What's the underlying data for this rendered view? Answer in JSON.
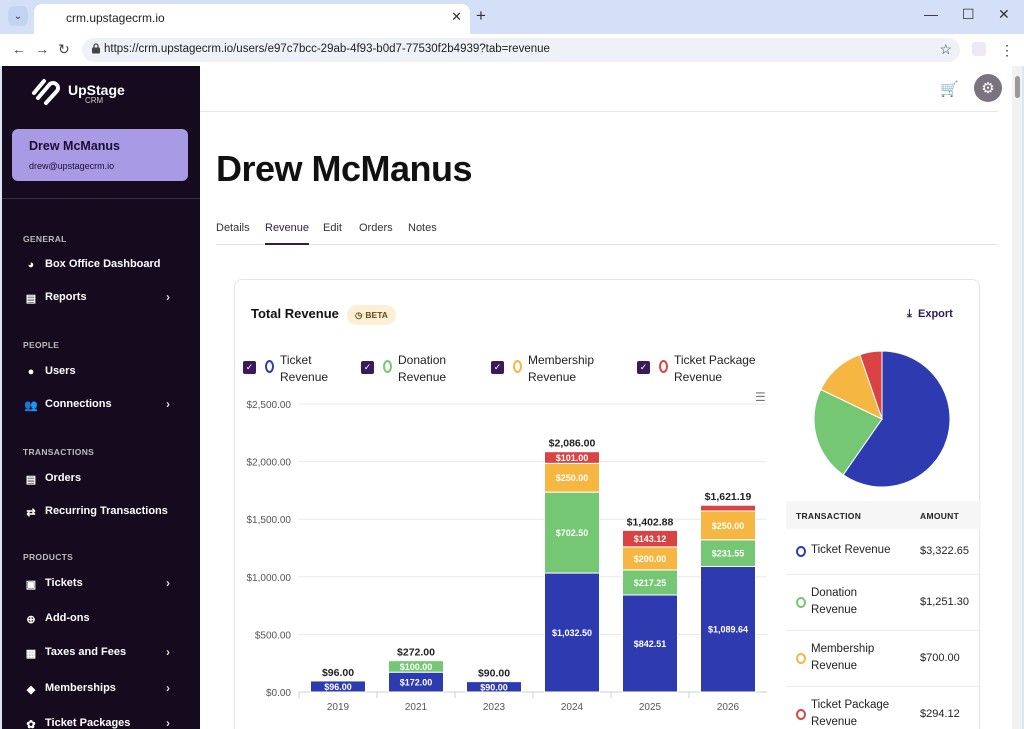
{
  "browser": {
    "tab_title": "crm.upstagecrm.io",
    "url": "https://crm.upstagecrm.io/users/e97c7bcc-29ab-4f93-b0d7-77530f2b4939?tab=revenue"
  },
  "sidebar": {
    "logo_text": "UpStage",
    "logo_sub": "CRM",
    "user_name": "Drew McManus",
    "user_email": "drew@upstagecrm.io",
    "sections": {
      "general": "GENERAL",
      "people": "PEOPLE",
      "transactions": "TRANSACTIONS",
      "products": "PRODUCTS"
    },
    "items": [
      {
        "label": "Box Office Dashboard",
        "icon": "pie-chart-icon"
      },
      {
        "label": "Reports",
        "icon": "clipboard-icon"
      },
      {
        "label": "Users",
        "icon": "user-icon"
      },
      {
        "label": "Connections",
        "icon": "people-icon"
      },
      {
        "label": "Orders",
        "icon": "list-icon"
      },
      {
        "label": "Recurring Transactions",
        "icon": "repeat-icon"
      },
      {
        "label": "Tickets",
        "icon": "ticket-icon"
      },
      {
        "label": "Add-ons",
        "icon": "plus-circle-icon"
      },
      {
        "label": "Taxes and Fees",
        "icon": "receipt-icon"
      },
      {
        "label": "Memberships",
        "icon": "tag-icon"
      },
      {
        "label": "Ticket Packages",
        "icon": "badge-icon"
      }
    ]
  },
  "main": {
    "page_title": "Drew McManus",
    "tabs": [
      "Details",
      "Revenue",
      "Edit",
      "Orders",
      "Notes"
    ],
    "active_tab": "Revenue"
  },
  "card": {
    "title": "Total Revenue",
    "beta": "BETA",
    "export": "Export",
    "legend": [
      {
        "line1": "Ticket",
        "line2": "Revenue",
        "color": "#2e3bb0"
      },
      {
        "line1": "Donation",
        "line2": "Revenue",
        "color": "#75c774"
      },
      {
        "line1": "Membership",
        "line2": "Revenue",
        "color": "#f5b642"
      },
      {
        "line1": "Ticket Package",
        "line2": "Revenue",
        "color": "#d94343"
      }
    ],
    "table": {
      "col_transaction": "TRANSACTION",
      "col_amount": "AMOUNT",
      "rows": [
        {
          "line1": "Ticket Revenue",
          "line2": "",
          "amount": "$3,322.65",
          "color": "#2e3bb0"
        },
        {
          "line1": "Donation",
          "line2": "Revenue",
          "amount": "$1,251.30",
          "color": "#75c774"
        },
        {
          "line1": "Membership",
          "line2": "Revenue",
          "amount": "$700.00",
          "color": "#f5b642"
        },
        {
          "line1": "Ticket Package",
          "line2": "Revenue",
          "amount": "$294.12",
          "color": "#d94343"
        }
      ]
    }
  },
  "chart_data": [
    {
      "type": "bar",
      "stacked": true,
      "categories": [
        "2019",
        "2021",
        "2023",
        "2024",
        "2025",
        "2026"
      ],
      "ylim": [
        0,
        2500
      ],
      "yticks": [
        "$0.00",
        "$500.00",
        "$1,000.00",
        "$1,500.00",
        "$2,000.00",
        "$2,500.00"
      ],
      "totals": [
        "$96.00",
        "$272.00",
        "$90.00",
        "$2,086.00",
        "$1,402.88",
        "$1,621.19"
      ],
      "series": [
        {
          "name": "Ticket Revenue",
          "color": "#2e3bb0",
          "values": [
            96,
            172,
            90,
            1032.5,
            842.51,
            1089.64
          ],
          "labels": [
            "$96.00",
            "$172.00",
            "$90.00",
            "$1,032.50",
            "$842.51",
            "$1,089.64"
          ]
        },
        {
          "name": "Donation Revenue",
          "color": "#75c774",
          "values": [
            0,
            100,
            0,
            702.5,
            217.25,
            231.55
          ],
          "labels": [
            "",
            "$100.00",
            "",
            "$702.50",
            "$217.25",
            "$231.55"
          ]
        },
        {
          "name": "Membership Revenue",
          "color": "#f5b642",
          "values": [
            0,
            0,
            0,
            250,
            200,
            250
          ],
          "labels": [
            "",
            "",
            "",
            "$250.00",
            "$200.00",
            "$250.00"
          ]
        },
        {
          "name": "Ticket Package Revenue",
          "color": "#d94343",
          "values": [
            0,
            0,
            0,
            101,
            143.12,
            50
          ],
          "labels": [
            "",
            "",
            "",
            "$101.00",
            "$143.12",
            ""
          ]
        }
      ],
      "grid": true
    },
    {
      "type": "pie",
      "labels": [
        "Ticket Revenue",
        "Donation Revenue",
        "Membership Revenue",
        "Ticket Package Revenue"
      ],
      "values": [
        3322.65,
        1251.3,
        700.0,
        294.12
      ],
      "colors": [
        "#2e3bb0",
        "#75c774",
        "#f5b642",
        "#d94343"
      ]
    }
  ]
}
